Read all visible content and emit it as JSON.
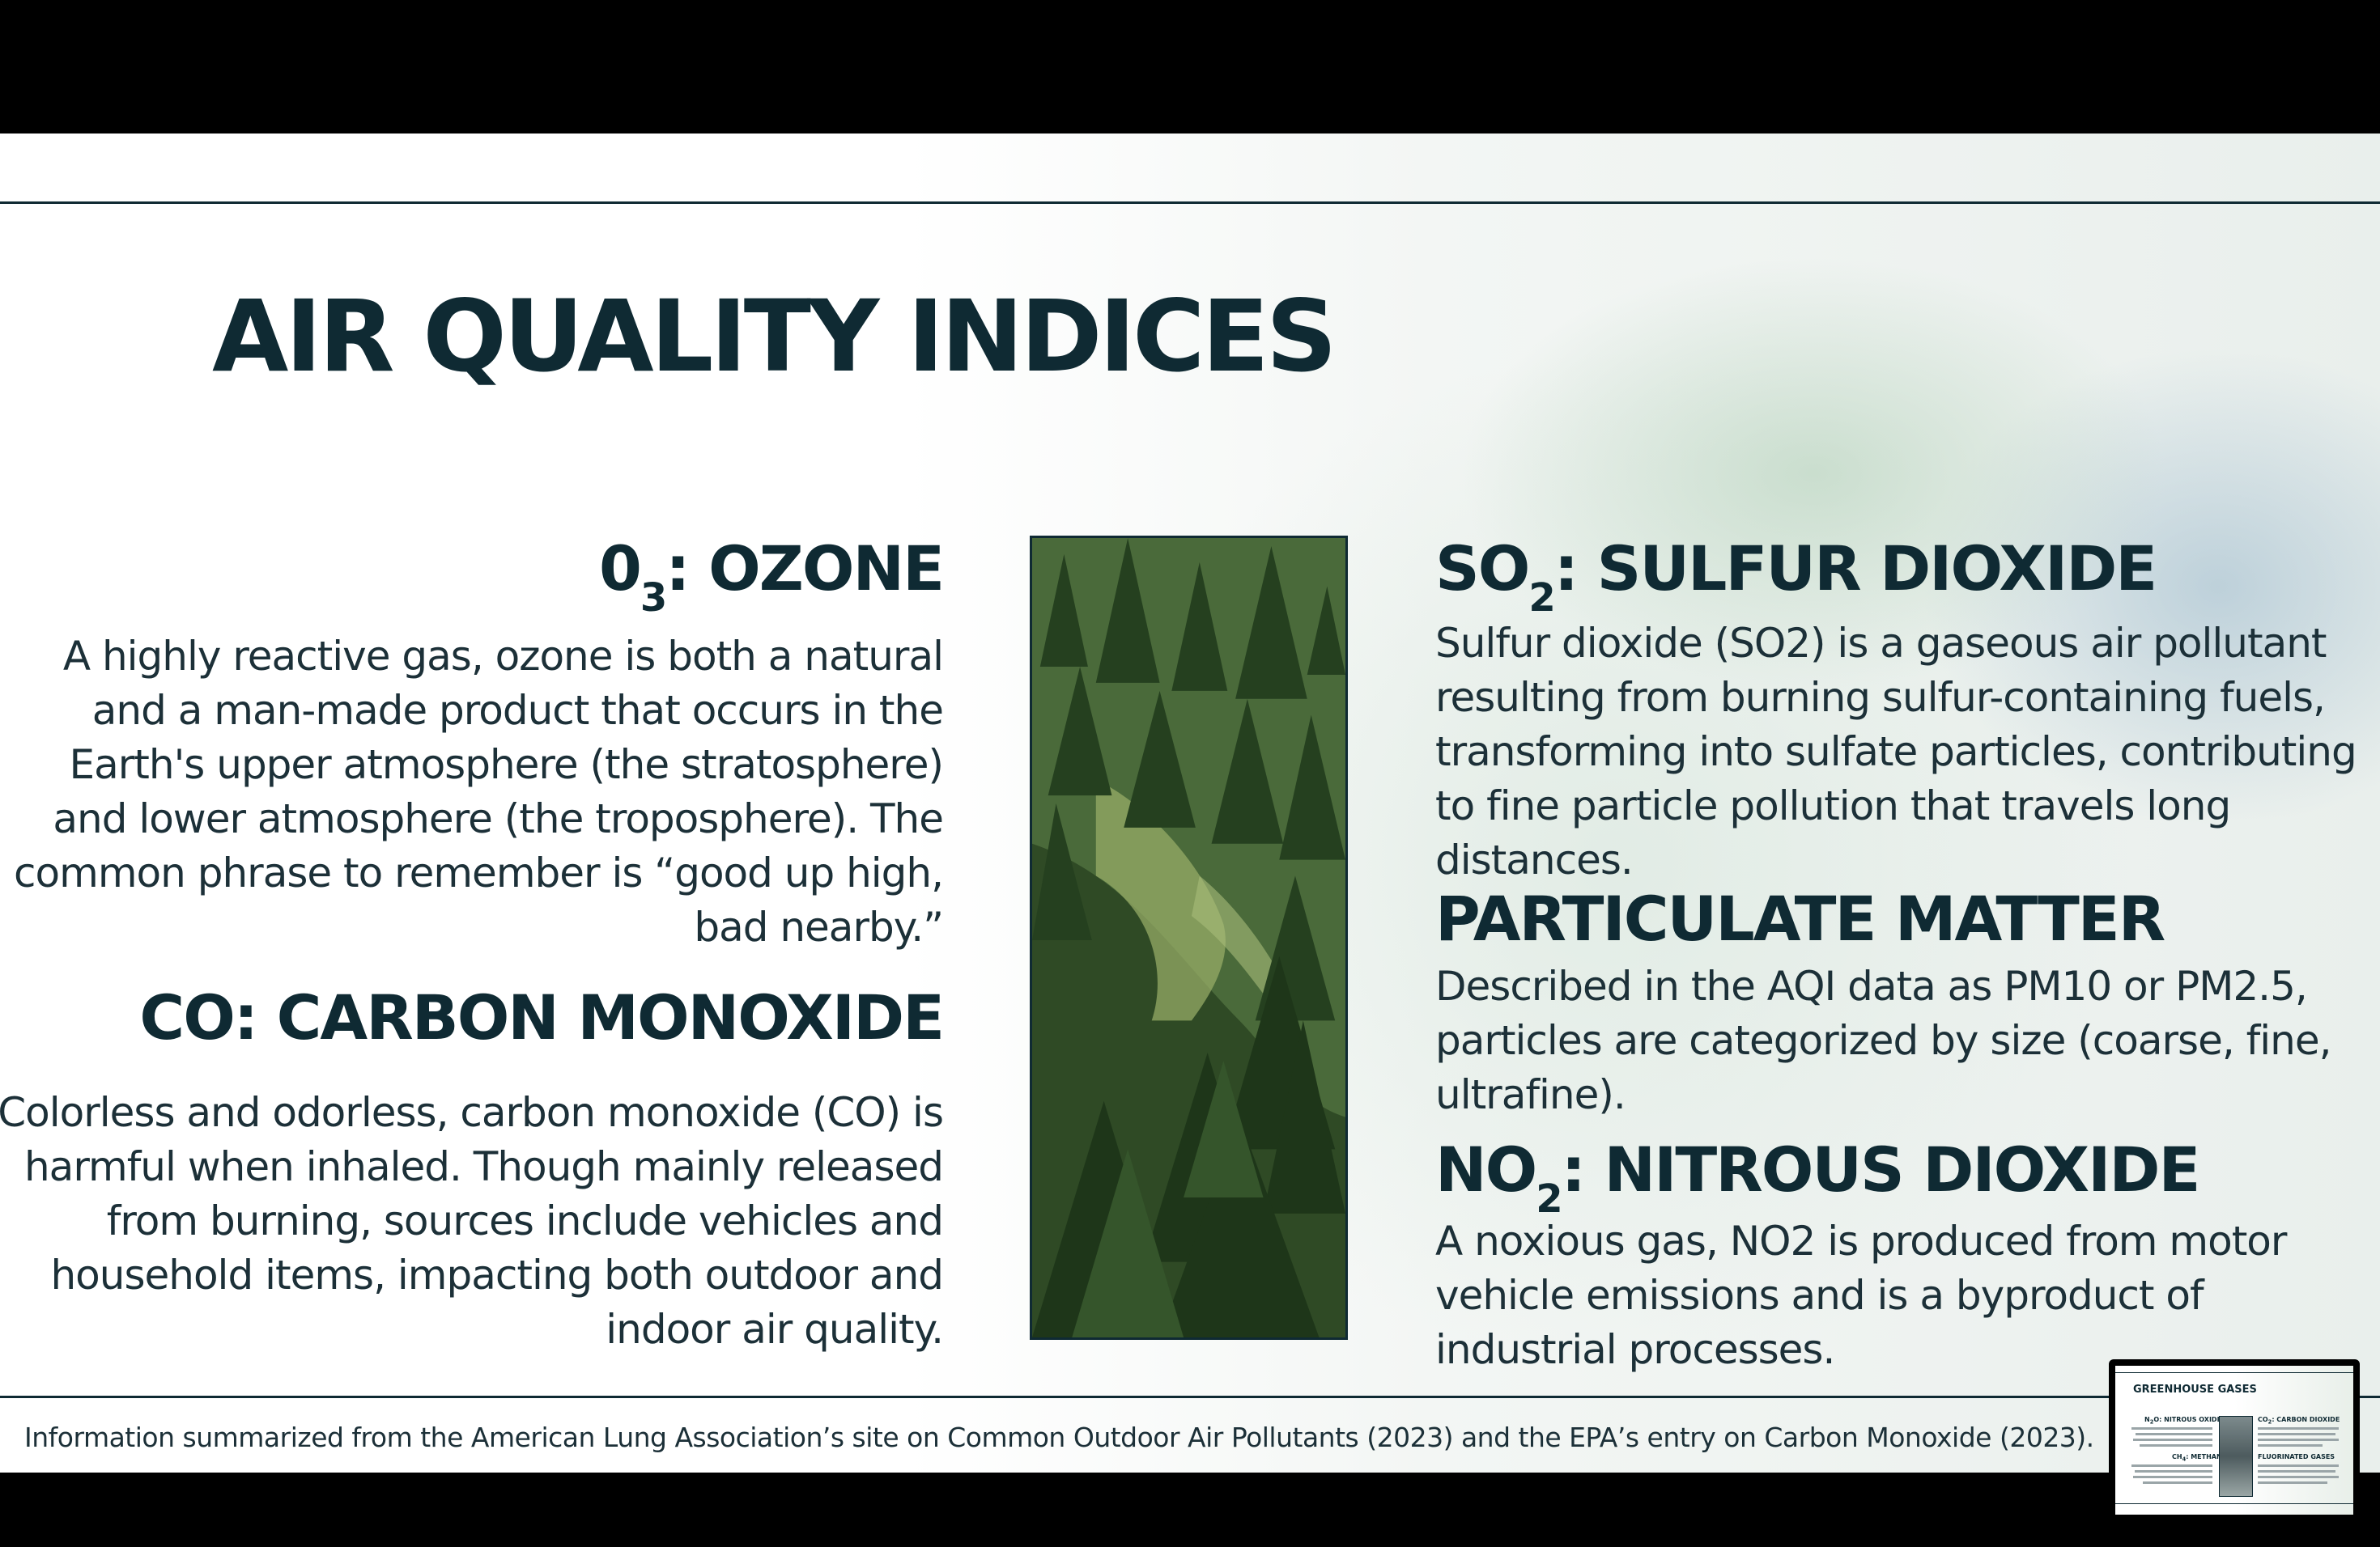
{
  "slide": {
    "title": "AIR QUALITY INDICES",
    "sections": {
      "ozone": {
        "heading_main": "0",
        "heading_sub": "3",
        "heading_rest": ": OZONE",
        "body": "A highly reactive gas, ozone is both a natural and a man-made product that occurs in the Earth's upper atmosphere (the stratosphere) and lower atmosphere (the troposphere). The common phrase to remember is “good up high, bad nearby.”"
      },
      "co": {
        "heading": "CO: CARBON MONOXIDE",
        "body": "Colorless and odorless, carbon monoxide (CO) is harmful when inhaled. Though mainly released from burning, sources include vehicles and household items, impacting both outdoor and indoor air quality."
      },
      "so2": {
        "heading_main": "SO",
        "heading_sub": "2",
        "heading_rest": ": SULFUR DIOXIDE",
        "body": "Sulfur dioxide (SO2) is a gaseous air pollutant resulting from burning sulfur-containing fuels, transforming into sulfate particles, contributing to fine particle pollution that travels long distances."
      },
      "pm": {
        "heading": "PARTICULATE MATTER",
        "body": "Described in the AQI data as PM10 or PM2.5, particles are categorized by size (coarse, fine, ultrafine)."
      },
      "no2": {
        "heading_main": "NO",
        "heading_sub": "2",
        "heading_rest": ": NITROUS DIOXIDE",
        "body": "A noxious gas, NO2 is produced from motor vehicle emissions and is a byproduct of industrial processes."
      }
    },
    "footer": "Information summarized from the American Lung Association’s site on Common Outdoor Air Pollutants (2023) and the EPA’s entry on Carbon Monoxide (2023)."
  },
  "thumbnail": {
    "title": "GREENHOUSE GASES",
    "h1_main": "N",
    "h1_sub": "2",
    "h1_rest": "O: NITROUS OXIDE",
    "h2_main": "CO",
    "h2_sub": "2",
    "h2_rest": ": CARBON DIOXIDE",
    "h3_main": "CH",
    "h3_sub": "4",
    "h3_rest": ": METHANE",
    "h4": "FLUORINATED GASES"
  },
  "colors": {
    "ink": "#0f2a33",
    "letterbox": "#000000"
  }
}
